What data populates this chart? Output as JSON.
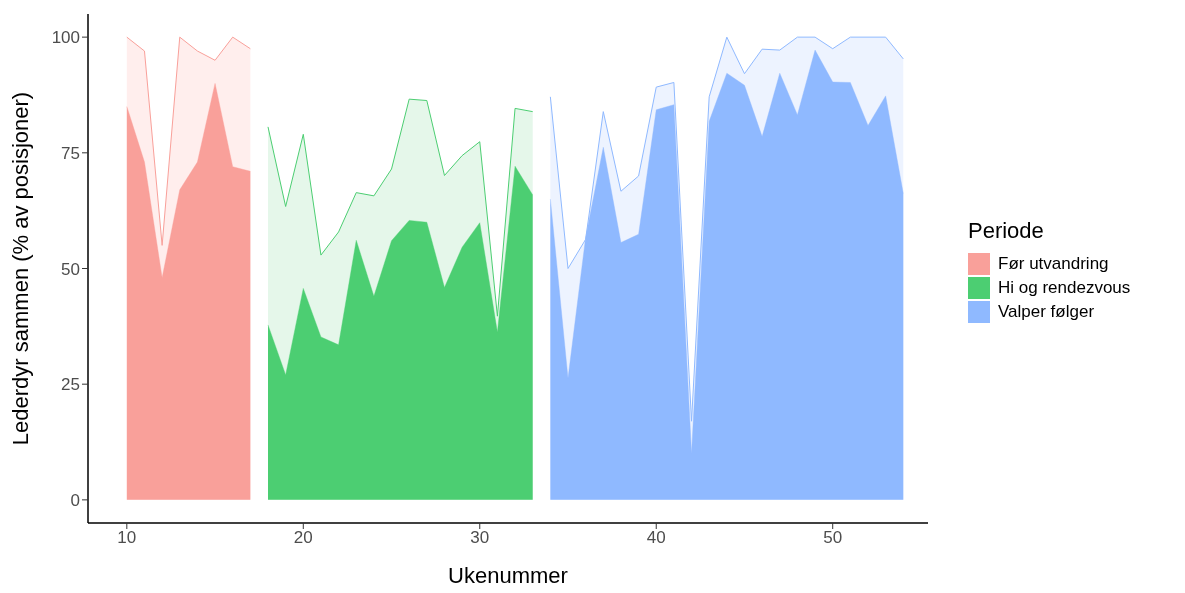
{
  "chart_data": {
    "type": "area",
    "xlabel": "Ukenummer",
    "ylabel": "Lederdyr sammen (% av posisjoner)",
    "legend_title": "Periode",
    "legend": "right",
    "xlim": [
      7.8,
      55.4
    ],
    "xticks": [
      10,
      20,
      30,
      40,
      50
    ],
    "ylim": [
      -5,
      105
    ],
    "yticks": [
      0,
      25,
      50,
      75,
      100
    ],
    "series": [
      {
        "color": "#ffeeed",
        "x": [
          10,
          11,
          12,
          13,
          14,
          15,
          16,
          17
        ],
        "values": [
          100,
          97,
          55,
          100,
          97,
          95,
          100,
          97.5
        ]
      },
      {
        "name": "Før utvandring",
        "color": "#f9a09a",
        "x": [
          10,
          11,
          12,
          13,
          14,
          15,
          16,
          17
        ],
        "values": [
          85,
          73,
          48,
          67,
          73,
          90,
          72,
          71
        ]
      },
      {
        "color": "#e5f7ea",
        "x": [
          18,
          19,
          20,
          21,
          22,
          23,
          24,
          25,
          26,
          27,
          28,
          29,
          30,
          31,
          32,
          33
        ],
        "values": [
          80.6,
          63.4,
          79,
          52.9,
          57.9,
          66.4,
          65.7,
          71.5,
          86.6,
          86.3,
          70.1,
          74.4,
          77.4,
          39.7,
          84.6,
          83.9
        ]
      },
      {
        "name": "Hi og rendezvous",
        "color": "#4cce72",
        "x": [
          18,
          19,
          20,
          21,
          22,
          23,
          24,
          25,
          26,
          27,
          28,
          29,
          30,
          31,
          32,
          33
        ],
        "values": [
          37.8,
          27,
          45.7,
          35.2,
          33.5,
          56.1,
          44,
          56,
          60.4,
          60,
          45.9,
          54.6,
          59.9,
          36.2,
          72.1,
          65.9
        ]
      },
      {
        "color": "#edf3ff",
        "x": [
          34,
          35,
          36,
          37,
          38,
          39,
          40,
          41,
          42,
          43,
          44,
          45,
          46,
          47,
          48,
          49,
          50,
          51,
          52,
          53,
          54
        ],
        "values": [
          87.1,
          50,
          56.3,
          83.9,
          66.7,
          70,
          89.2,
          90.2,
          17,
          87.1,
          100,
          92.1,
          97.4,
          97.2,
          100,
          100,
          97.5,
          100,
          100,
          100,
          95.3
        ]
      },
      {
        "name": "Valper følger",
        "color": "#8fb9ff",
        "x": [
          34,
          35,
          36,
          37,
          38,
          39,
          40,
          41,
          42,
          43,
          44,
          45,
          46,
          47,
          48,
          49,
          50,
          51,
          52,
          53,
          54
        ],
        "values": [
          65,
          26.3,
          56.7,
          76.2,
          55.6,
          57.4,
          84.3,
          85.4,
          10,
          81.8,
          92.2,
          89.6,
          78.5,
          92.2,
          83.2,
          97.2,
          90.3,
          90.2,
          80.9,
          87.3,
          66.2
        ]
      }
    ]
  }
}
